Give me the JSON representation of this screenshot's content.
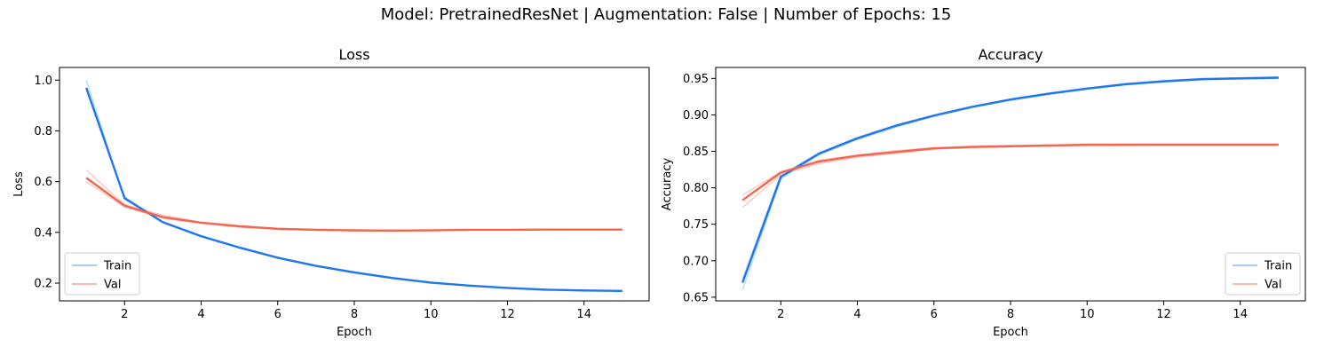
{
  "suptitle": "Model: PretrainedResNet | Augmentation: False | Number of Epochs: 15",
  "colors": {
    "train": "#1f77f0",
    "val": "#f4654f",
    "train_faint": "#a9cdf5",
    "val_faint": "#f8b9b0"
  },
  "chart_data": [
    {
      "type": "line",
      "title": "Loss",
      "xlabel": "Epoch",
      "ylabel": "Loss",
      "xlim": [
        0.3,
        15.7
      ],
      "ylim": [
        0.13,
        1.05
      ],
      "xticks": [
        2,
        4,
        6,
        8,
        10,
        12,
        14
      ],
      "yticks": [
        0.2,
        0.4,
        0.6,
        0.8,
        1.0
      ],
      "ytick_labels": [
        "0.2",
        "0.4",
        "0.6",
        "0.8",
        "1.0"
      ],
      "legend": "lower-left",
      "x": [
        1,
        2,
        3,
        4,
        5,
        6,
        7,
        8,
        9,
        10,
        11,
        12,
        13,
        14,
        15
      ],
      "series": [
        {
          "name": "Train",
          "color": "#1f77f0",
          "values": [
            0.97,
            0.535,
            0.44,
            0.385,
            0.34,
            0.3,
            0.268,
            0.242,
            0.22,
            0.202,
            0.19,
            0.181,
            0.174,
            0.171,
            0.169
          ],
          "runs": [
            [
              1.0,
              0.53,
              0.44,
              0.386,
              0.341,
              0.302,
              0.27,
              0.244,
              0.222,
              0.204,
              0.191,
              0.182,
              0.176,
              0.172,
              0.17
            ],
            [
              0.96,
              0.54,
              0.438,
              0.383,
              0.338,
              0.298,
              0.266,
              0.24,
              0.218,
              0.2,
              0.189,
              0.18,
              0.173,
              0.17,
              0.168
            ]
          ]
        },
        {
          "name": "Val",
          "color": "#f4654f",
          "values": [
            0.615,
            0.505,
            0.46,
            0.438,
            0.424,
            0.414,
            0.41,
            0.408,
            0.407,
            0.408,
            0.41,
            0.41,
            0.411,
            0.411,
            0.411
          ],
          "runs": [
            [
              0.645,
              0.51,
              0.468,
              0.44,
              0.426,
              0.416,
              0.412,
              0.41,
              0.409,
              0.41,
              0.411,
              0.411,
              0.412,
              0.412,
              0.413
            ],
            [
              0.6,
              0.5,
              0.455,
              0.436,
              0.42,
              0.412,
              0.408,
              0.406,
              0.405,
              0.407,
              0.409,
              0.409,
              0.41,
              0.41,
              0.41
            ]
          ]
        }
      ]
    },
    {
      "type": "line",
      "title": "Accuracy",
      "xlabel": "Epoch",
      "ylabel": "Accuracy",
      "xlim": [
        0.3,
        15.7
      ],
      "ylim": [
        0.645,
        0.965
      ],
      "xticks": [
        2,
        4,
        6,
        8,
        10,
        12,
        14
      ],
      "yticks": [
        0.65,
        0.7,
        0.75,
        0.8,
        0.85,
        0.9,
        0.95
      ],
      "ytick_labels": [
        "0.65",
        "0.70",
        "0.75",
        "0.80",
        "0.85",
        "0.90",
        "0.95"
      ],
      "legend": "lower-right",
      "x": [
        1,
        2,
        3,
        4,
        5,
        6,
        7,
        8,
        9,
        10,
        11,
        12,
        13,
        14,
        15
      ],
      "series": [
        {
          "name": "Train",
          "color": "#1f77f0",
          "values": [
            0.67,
            0.815,
            0.847,
            0.868,
            0.885,
            0.899,
            0.911,
            0.921,
            0.929,
            0.936,
            0.942,
            0.946,
            0.949,
            0.95,
            0.951
          ],
          "runs": [
            [
              0.66,
              0.812,
              0.845,
              0.866,
              0.883,
              0.898,
              0.91,
              0.92,
              0.928,
              0.935,
              0.941,
              0.945,
              0.948,
              0.949,
              0.95
            ],
            [
              0.675,
              0.818,
              0.848,
              0.869,
              0.886,
              0.9,
              0.912,
              0.922,
              0.93,
              0.937,
              0.943,
              0.947,
              0.95,
              0.951,
              0.952
            ]
          ]
        },
        {
          "name": "Val",
          "color": "#f4654f",
          "values": [
            0.783,
            0.821,
            0.836,
            0.844,
            0.849,
            0.854,
            0.856,
            0.857,
            0.858,
            0.859,
            0.859,
            0.859,
            0.859,
            0.859,
            0.859
          ],
          "runs": [
            [
              0.773,
              0.818,
              0.833,
              0.842,
              0.847,
              0.853,
              0.855,
              0.856,
              0.857,
              0.858,
              0.858,
              0.859,
              0.859,
              0.859,
              0.859
            ],
            [
              0.79,
              0.822,
              0.838,
              0.845,
              0.851,
              0.855,
              0.857,
              0.858,
              0.859,
              0.859,
              0.86,
              0.86,
              0.86,
              0.86,
              0.86
            ]
          ]
        }
      ]
    }
  ]
}
